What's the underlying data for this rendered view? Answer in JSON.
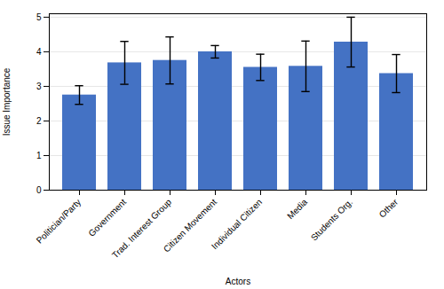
{
  "chart_data": {
    "type": "bar",
    "xlabel": "Actors",
    "ylabel": "Issue Importance",
    "categories": [
      "Politician/Party",
      "Government",
      "Trad. Interest Group",
      "Citizen Movement",
      "Individual Citizen",
      "Media",
      "Students Org.",
      "Other"
    ],
    "values": [
      2.75,
      3.68,
      3.75,
      4.0,
      3.55,
      3.58,
      4.28,
      3.37
    ],
    "errors": [
      0.27,
      0.62,
      0.68,
      0.18,
      0.38,
      0.73,
      0.72,
      0.55
    ],
    "color": "#4472C4",
    "ylim": [
      0,
      5.1
    ],
    "yticks": [
      0,
      1,
      2,
      3,
      4,
      5
    ],
    "grid": true
  }
}
